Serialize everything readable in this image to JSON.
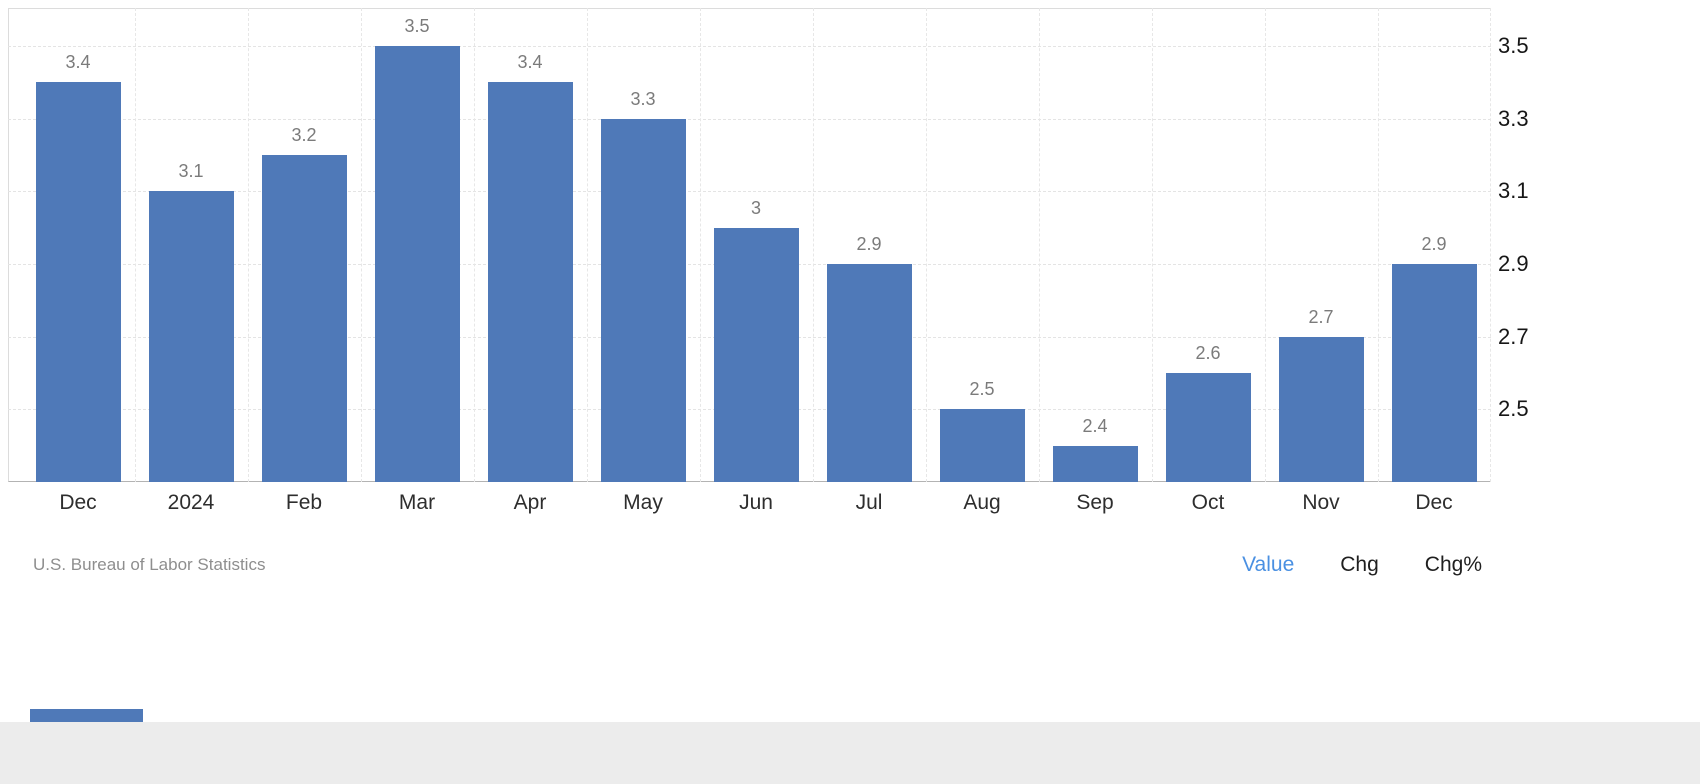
{
  "chart_data": {
    "type": "bar",
    "categories": [
      "Dec",
      "2024",
      "Feb",
      "Mar",
      "Apr",
      "May",
      "Jun",
      "Jul",
      "Aug",
      "Sep",
      "Oct",
      "Nov",
      "Dec"
    ],
    "values": [
      3.4,
      3.1,
      3.2,
      3.5,
      3.4,
      3.3,
      3,
      2.9,
      2.5,
      2.4,
      2.6,
      2.7,
      2.9
    ],
    "value_labels": [
      "3.4",
      "3.1",
      "3.2",
      "3.5",
      "3.4",
      "3.3",
      "3",
      "2.9",
      "2.5",
      "2.4",
      "2.6",
      "2.7",
      "2.9"
    ],
    "title": "",
    "xlabel": "",
    "ylabel": "",
    "y_ticks": [
      3.5,
      3.3,
      3.1,
      2.9,
      2.7,
      2.5
    ],
    "y_tick_labels": [
      "3.5",
      "3.3",
      "3.1",
      "2.9",
      "2.7",
      "2.5"
    ],
    "ylim": [
      2.3,
      3.6
    ],
    "y_axis_side": "right",
    "grid": "dashed",
    "legend": "none"
  },
  "footer": {
    "source": "U.S. Bureau of Labor Statistics",
    "toggles": [
      {
        "label": "Value",
        "active": true
      },
      {
        "label": "Chg",
        "active": false
      },
      {
        "label": "Chg%",
        "active": false
      }
    ]
  },
  "colors": {
    "bar": "#4f79b8",
    "accent": "#4a90e2",
    "grid": "#e4e4e4",
    "axis_line": "#b3b3b3",
    "value_label": "#7b7b7b",
    "bottom_band": "#ececec"
  }
}
